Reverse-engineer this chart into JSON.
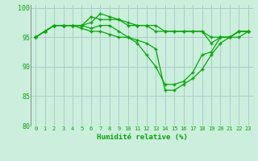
{
  "xlabel": "Humidité relative (%)",
  "background_color": "#cceedd",
  "grid_color": "#aacccc",
  "line_color": "#00aa00",
  "xlim": [
    -0.5,
    23.5
  ],
  "ylim": [
    80,
    100.5
  ],
  "yticks": [
    80,
    85,
    90,
    95,
    100
  ],
  "xticks": [
    0,
    1,
    2,
    3,
    4,
    5,
    6,
    7,
    8,
    9,
    10,
    11,
    12,
    13,
    14,
    15,
    16,
    17,
    18,
    19,
    20,
    21,
    22,
    23
  ],
  "series": [
    [
      95,
      96,
      97,
      97,
      97,
      97,
      98.5,
      98,
      98,
      98,
      97,
      97,
      97,
      97,
      96,
      96,
      96,
      96,
      96,
      94,
      95,
      95,
      96,
      96
    ],
    [
      95,
      96,
      97,
      97,
      97,
      97,
      97.5,
      99,
      98.5,
      98,
      97.5,
      97,
      97,
      96,
      96,
      96,
      96,
      96,
      96,
      95,
      95,
      95,
      96,
      96
    ],
    [
      95,
      96,
      97,
      97,
      97,
      97,
      96.5,
      97,
      97,
      96,
      95,
      94,
      92,
      90,
      87,
      87,
      87.5,
      89,
      92,
      92.5,
      95,
      95,
      96,
      96
    ],
    [
      95,
      96,
      97,
      97,
      97,
      96.5,
      96,
      96,
      95.5,
      95,
      95,
      94.5,
      94,
      93,
      86,
      86,
      87,
      88,
      89.5,
      92,
      94,
      95,
      95,
      96
    ]
  ]
}
